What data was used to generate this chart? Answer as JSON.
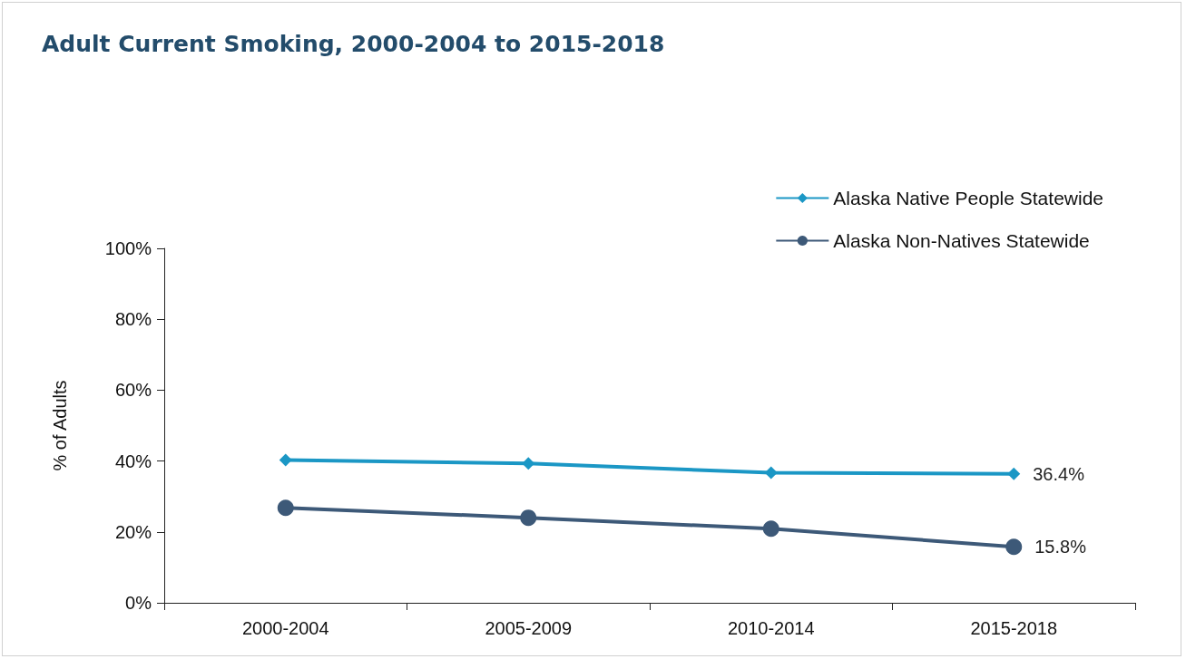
{
  "chart_data": {
    "type": "line",
    "title": "Adult Current Smoking, 2000-2004 to 2015-2018",
    "ylabel": "% of Adults",
    "categories": [
      "2000-2004",
      "2005-2009",
      "2010-2014",
      "2015-2018"
    ],
    "series": [
      {
        "name": "Alaska Native People Statewide",
        "color": "#1b97c5",
        "marker": "diamond",
        "values": [
          40.3,
          39.3,
          36.7,
          36.4
        ],
        "value_labels": [
          null,
          null,
          null,
          "36.4%"
        ]
      },
      {
        "name": "Alaska Non-Natives Statewide",
        "color": "#3d5978",
        "marker": "circle",
        "values": [
          26.8,
          24.0,
          20.9,
          15.8
        ],
        "value_labels": [
          null,
          null,
          null,
          "15.8%"
        ]
      }
    ],
    "ylim": [
      0,
      100
    ],
    "yticks": [
      {
        "value": 0,
        "label": "0%"
      },
      {
        "value": 20,
        "label": "20%"
      },
      {
        "value": 40,
        "label": "40%"
      },
      {
        "value": 60,
        "label": "60%"
      },
      {
        "value": 80,
        "label": "80%"
      },
      {
        "value": 100,
        "label": "100%"
      }
    ],
    "grid": false,
    "legend": "top right",
    "line_style": "solid"
  }
}
